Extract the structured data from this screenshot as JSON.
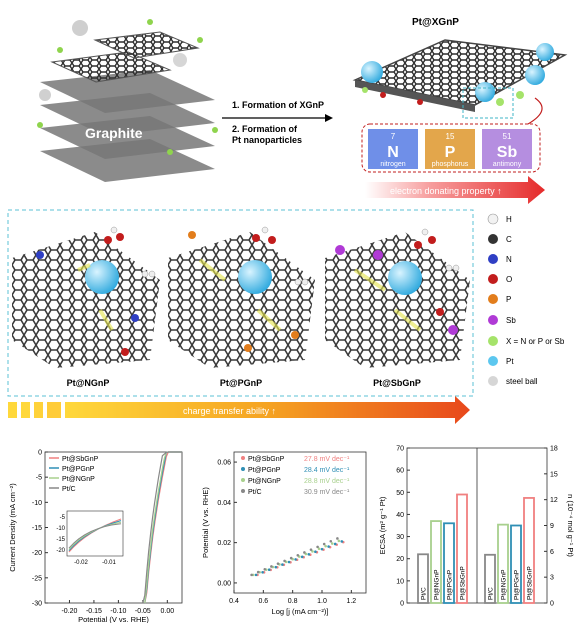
{
  "top": {
    "left_label": "Graphite",
    "step1": "1. Formation of XGnP",
    "step2_line1": "2. Formation of",
    "step2_line2": "Pt nanoparticles",
    "product_title": "Pt@XGnP",
    "elements": [
      {
        "number": "7",
        "symbol": "N",
        "name": "nitrogen",
        "color": "#6f8fe8"
      },
      {
        "number": "15",
        "symbol": "P",
        "name": "phosphorus",
        "color": "#e3a64b"
      },
      {
        "number": "51",
        "symbol": "Sb",
        "name": "antimony",
        "color": "#b58ee0"
      }
    ],
    "arrow_label": "electron donating property ↑"
  },
  "middle": {
    "panels": [
      "Pt@NGnP",
      "Pt@PGnP",
      "Pt@SbGnP"
    ],
    "legend": [
      {
        "label": "H",
        "color": "#f2f2f2"
      },
      {
        "label": "C",
        "color": "#333333"
      },
      {
        "label": "N",
        "color": "#2f3fc4"
      },
      {
        "label": "O",
        "color": "#c21d1d"
      },
      {
        "label": "P",
        "color": "#e27d1c"
      },
      {
        "label": "Sb",
        "color": "#b03ad6"
      },
      {
        "label": "X = N or P or Sb",
        "color": "#a5e36a"
      },
      {
        "label": "Pt",
        "color": "#5cc7ef"
      },
      {
        "label": "steel ball",
        "color": "#d6d6d6"
      }
    ],
    "arrow_label": "charge transfer ability ↑"
  },
  "colors": {
    "SbGnP": "#f08080",
    "PGnP": "#2f8fb5",
    "NGnP": "#a8d08d",
    "PtC": "#888888"
  },
  "chart_data": [
    {
      "type": "line",
      "xlabel": "Potential (V vs. RHE)",
      "ylabel": "Current Density (mA cm⁻²)",
      "xlim": [
        -0.25,
        0.03
      ],
      "ylim": [
        -30,
        0
      ],
      "xticks": [
        "-0.20",
        "-0.15",
        "-0.10",
        "-0.05",
        "0.00"
      ],
      "yticks": [
        "0",
        "-5",
        "-10",
        "-15",
        "-20",
        "-25",
        "-30"
      ],
      "legend": [
        "Pt@SbGnP",
        "Pt@PGnP",
        "Pt@NGnP",
        "Pt/C"
      ],
      "inset": {
        "xticks": [
          "-0.02",
          "-0.01"
        ],
        "yticks": [
          "-5",
          "-10",
          "-15",
          "-20"
        ]
      }
    },
    {
      "type": "scatter",
      "xlabel": "Log [j (mA cm⁻²)]",
      "ylabel": "Potential (V vs. RHE)",
      "xlim": [
        0.4,
        1.3
      ],
      "ylim": [
        -0.005,
        0.065
      ],
      "xticks": [
        "0.4",
        "0.6",
        "0.8",
        "1.0",
        "1.2"
      ],
      "yticks": [
        "0.06",
        "0.04",
        "0.02",
        "0.00"
      ],
      "series": [
        {
          "name": "Pt@SbGnP",
          "slope_label": "27.8 mV dec⁻¹",
          "slope": 0.0278
        },
        {
          "name": "Pt@PGnP",
          "slope_label": "28.4 mV dec⁻¹",
          "slope": 0.0284
        },
        {
          "name": "Pt@NGnP",
          "slope_label": "28.8 mV dec⁻¹",
          "slope": 0.0288
        },
        {
          "name": "Pt/C",
          "slope_label": "30.9 mV dec⁻¹",
          "slope": 0.0309
        }
      ]
    },
    {
      "type": "bar",
      "ylabel_left": "ECSA (m² g⁻¹ Pt)",
      "ylabel_right": "n (10⁻⁴ mol g⁻¹ Pt)",
      "left_ylim": [
        0,
        70
      ],
      "right_ylim": [
        0,
        18
      ],
      "left_yticks": [
        "70",
        "60",
        "50",
        "40",
        "30",
        "20",
        "10",
        "0"
      ],
      "right_yticks": [
        "18",
        "15",
        "12",
        "9",
        "6",
        "3",
        "0"
      ],
      "groups": [
        {
          "categories": [
            "Pt/C",
            "Pt@NGnP",
            "Pt@PGnP",
            "Pt@SbGnP"
          ],
          "values": [
            22,
            37,
            36,
            49
          ]
        },
        {
          "categories": [
            "Pt/C",
            "Pt@NGnP",
            "Pt@PGnP",
            "Pt@SbGnP"
          ],
          "values": [
            5.6,
            9.1,
            9.0,
            12.2
          ]
        }
      ]
    }
  ]
}
